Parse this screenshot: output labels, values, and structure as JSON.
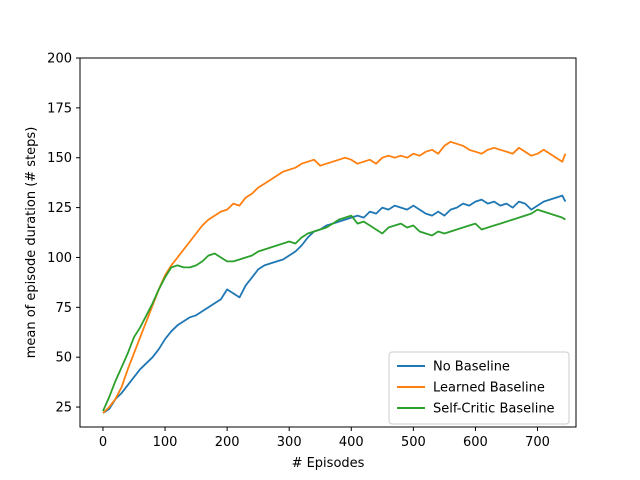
{
  "chart_data": {
    "type": "line",
    "title": "",
    "xlabel": "# Episodes",
    "ylabel": "mean of episode duration (# steps)",
    "xlim": [
      -37,
      762
    ],
    "ylim": [
      15,
      200
    ],
    "xticks": [
      0,
      100,
      200,
      300,
      400,
      500,
      600,
      700
    ],
    "yticks": [
      25,
      50,
      75,
      100,
      125,
      150,
      175,
      200
    ],
    "grid": false,
    "legend_position": "lower-right",
    "series": [
      {
        "name": "No Baseline",
        "color": "#1f77b4",
        "x": [
          0,
          10,
          20,
          30,
          40,
          50,
          60,
          70,
          80,
          90,
          100,
          110,
          120,
          130,
          140,
          150,
          160,
          170,
          180,
          190,
          200,
          210,
          220,
          230,
          240,
          250,
          260,
          270,
          280,
          290,
          300,
          310,
          320,
          330,
          340,
          350,
          360,
          370,
          380,
          390,
          400,
          410,
          420,
          430,
          440,
          450,
          460,
          470,
          480,
          490,
          500,
          510,
          520,
          530,
          540,
          550,
          560,
          570,
          580,
          590,
          600,
          610,
          620,
          630,
          640,
          650,
          660,
          670,
          680,
          690,
          700,
          710,
          720,
          730,
          740,
          745
        ],
        "y": [
          22,
          24,
          29,
          32,
          36,
          40,
          44,
          47,
          50,
          54,
          59,
          63,
          66,
          68,
          70,
          71,
          73,
          75,
          77,
          79,
          84,
          82,
          80,
          86,
          90,
          94,
          96,
          97,
          98,
          99,
          101,
          103,
          106,
          110,
          113,
          114,
          116,
          117,
          118,
          119,
          120,
          121,
          120,
          123,
          122,
          125,
          124,
          126,
          125,
          124,
          126,
          124,
          122,
          121,
          123,
          121,
          124,
          125,
          127,
          126,
          128,
          129,
          127,
          128,
          126,
          127,
          125,
          128,
          127,
          124,
          126,
          128,
          129,
          130,
          131,
          128
        ]
      },
      {
        "name": "Learned Baseline",
        "color": "#ff7f0e",
        "x": [
          0,
          10,
          20,
          30,
          40,
          50,
          60,
          70,
          80,
          90,
          100,
          110,
          120,
          130,
          140,
          150,
          160,
          170,
          180,
          190,
          200,
          210,
          220,
          230,
          240,
          250,
          260,
          270,
          280,
          290,
          300,
          310,
          320,
          330,
          340,
          350,
          360,
          370,
          380,
          390,
          400,
          410,
          420,
          430,
          440,
          450,
          460,
          470,
          480,
          490,
          500,
          510,
          520,
          530,
          540,
          550,
          560,
          570,
          580,
          590,
          600,
          610,
          620,
          630,
          640,
          650,
          660,
          670,
          680,
          690,
          700,
          710,
          720,
          730,
          740,
          745
        ],
        "y": [
          22,
          25,
          29,
          35,
          44,
          52,
          60,
          68,
          76,
          84,
          91,
          96,
          100,
          104,
          108,
          112,
          116,
          119,
          121,
          123,
          124,
          127,
          126,
          130,
          132,
          135,
          137,
          139,
          141,
          143,
          144,
          145,
          147,
          148,
          149,
          146,
          147,
          148,
          149,
          150,
          149,
          147,
          148,
          149,
          147,
          150,
          151,
          150,
          151,
          150,
          152,
          151,
          153,
          154,
          152,
          156,
          158,
          157,
          156,
          154,
          153,
          152,
          154,
          155,
          154,
          153,
          152,
          155,
          153,
          151,
          152,
          154,
          152,
          150,
          148,
          152
        ]
      },
      {
        "name": "Self-Critic Baseline",
        "color": "#2ca02c",
        "x": [
          0,
          10,
          20,
          30,
          40,
          50,
          60,
          70,
          80,
          90,
          100,
          110,
          120,
          130,
          140,
          150,
          160,
          170,
          180,
          190,
          200,
          210,
          220,
          230,
          240,
          250,
          260,
          270,
          280,
          290,
          300,
          310,
          320,
          330,
          340,
          350,
          360,
          370,
          380,
          390,
          400,
          410,
          420,
          430,
          440,
          450,
          460,
          470,
          480,
          490,
          500,
          510,
          520,
          530,
          540,
          550,
          560,
          570,
          580,
          590,
          600,
          610,
          620,
          630,
          640,
          650,
          660,
          670,
          680,
          690,
          700,
          710,
          720,
          730,
          740,
          745
        ],
        "y": [
          23,
          30,
          38,
          45,
          52,
          60,
          65,
          71,
          77,
          84,
          90,
          95,
          96,
          95,
          95,
          96,
          98,
          101,
          102,
          100,
          98,
          98,
          99,
          100,
          101,
          103,
          104,
          105,
          106,
          107,
          108,
          107,
          110,
          112,
          113,
          114,
          115,
          117,
          119,
          120,
          121,
          117,
          118,
          116,
          114,
          112,
          115,
          116,
          117,
          115,
          116,
          113,
          112,
          111,
          113,
          112,
          113,
          114,
          115,
          116,
          117,
          114,
          115,
          116,
          117,
          118,
          119,
          120,
          121,
          122,
          124,
          123,
          122,
          121,
          120,
          119
        ]
      }
    ]
  }
}
